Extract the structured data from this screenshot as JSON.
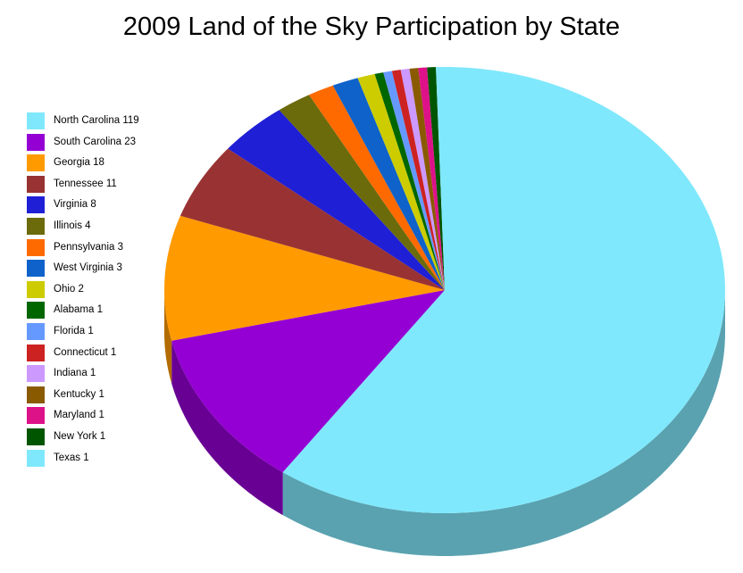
{
  "chart_data": {
    "type": "pie",
    "title": "2009 Land of the Sky Participation by State",
    "legend_position": "left",
    "slices": [
      {
        "label": "North Carolina",
        "value": 119,
        "color": "#80e8fc"
      },
      {
        "label": "South Carolina",
        "value": 23,
        "color": "#9400d3"
      },
      {
        "label": "Georgia",
        "value": 18,
        "color": "#ff9a00"
      },
      {
        "label": "Tennessee",
        "value": 11,
        "color": "#993333"
      },
      {
        "label": "Virginia",
        "value": 8,
        "color": "#1f1fd6"
      },
      {
        "label": "Illinois",
        "value": 4,
        "color": "#6b6b0c"
      },
      {
        "label": "Pennsylvania",
        "value": 3,
        "color": "#ff6a00"
      },
      {
        "label": "West Virginia",
        "value": 3,
        "color": "#0f62c9"
      },
      {
        "label": "Ohio",
        "value": 2,
        "color": "#cccc00"
      },
      {
        "label": "Alabama",
        "value": 1,
        "color": "#006600"
      },
      {
        "label": "Florida",
        "value": 1,
        "color": "#6699ff"
      },
      {
        "label": "Connecticut",
        "value": 1,
        "color": "#cc2222"
      },
      {
        "label": "Indiana",
        "value": 1,
        "color": "#cc99ff"
      },
      {
        "label": "Kentucky",
        "value": 1,
        "color": "#8a5a00"
      },
      {
        "label": "Maryland",
        "value": 1,
        "color": "#dd1188"
      },
      {
        "label": "New York",
        "value": 1,
        "color": "#005500"
      },
      {
        "label": "Texas",
        "value": 1,
        "color": "#80e8fc"
      }
    ]
  }
}
